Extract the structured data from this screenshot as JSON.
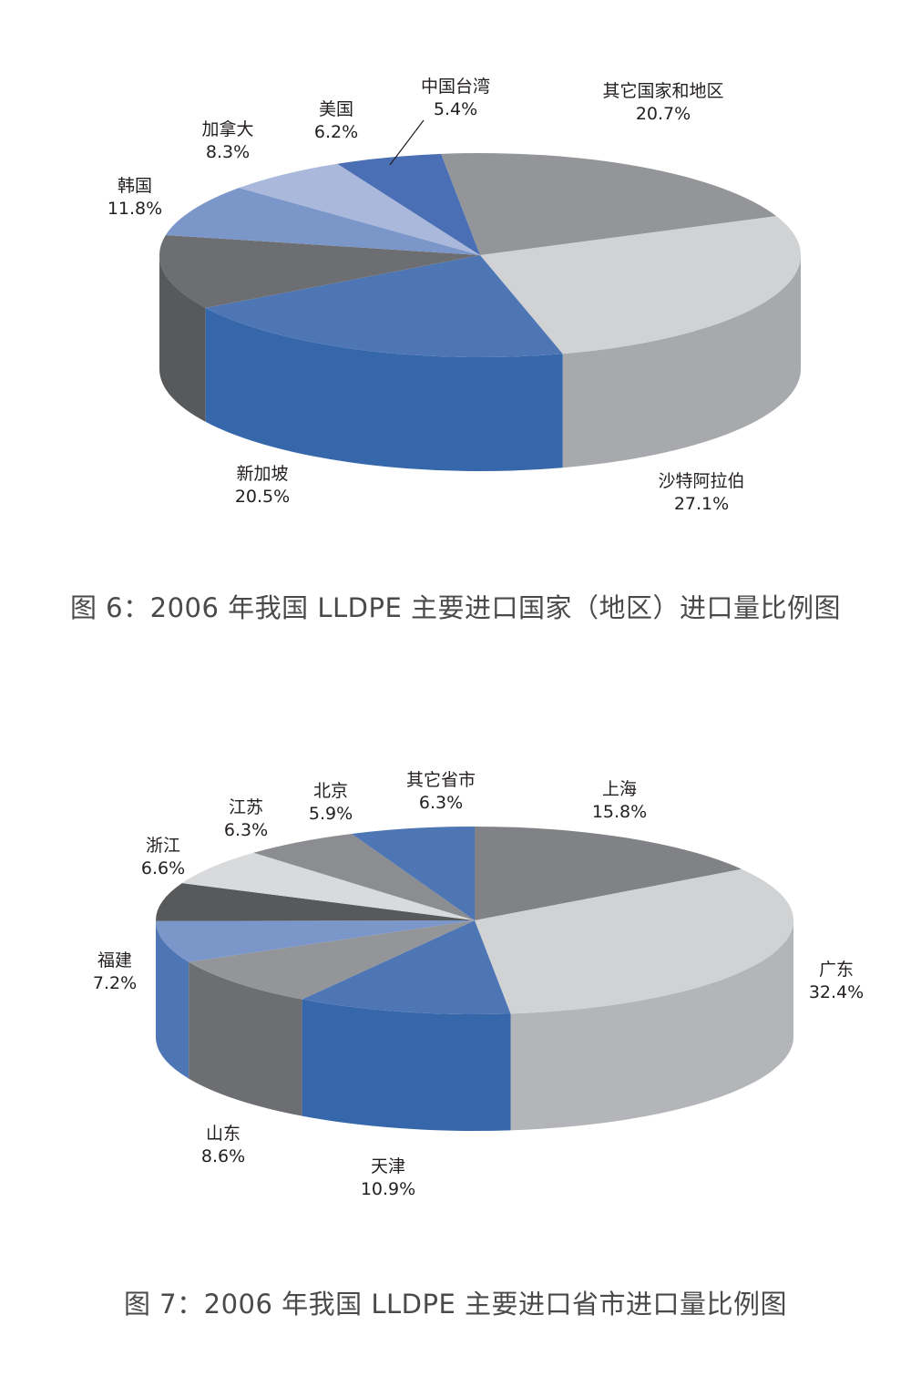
{
  "chart_data": [
    {
      "type": "pie",
      "style": "3d",
      "title": "图 6：2006 年我国 LLDPE 主要进口国家（地区）进口量比例图",
      "unit": "%",
      "categories": [
        "其它国家和地区",
        "沙特阿拉伯",
        "新加坡",
        "韩国",
        "加拿大",
        "美国",
        "中国台湾"
      ],
      "values": [
        20.7,
        27.1,
        20.5,
        11.8,
        8.3,
        6.2,
        5.4
      ],
      "labels": [
        {
          "name": "其它国家和地区",
          "value": "20.7%"
        },
        {
          "name": "沙特阿拉伯",
          "value": "27.1%"
        },
        {
          "name": "新加坡",
          "value": "20.5%"
        },
        {
          "name": "韩国",
          "value": "11.8%"
        },
        {
          "name": "加拿大",
          "value": "8.3%"
        },
        {
          "name": "美国",
          "value": "6.2%"
        },
        {
          "name": "中国台湾",
          "value": "5.4%"
        }
      ],
      "colors": [
        "#939598",
        "#d1d2d4",
        "#4f76b4",
        "#6d6e71",
        "#7b96c9",
        "#a9b8db",
        "#4a6fb5"
      ],
      "side_colors": [
        "#7a7b7e",
        "#a7a9ac",
        "#3667ab",
        "#58595b",
        "#5f7fb8",
        "#8fa2cc",
        "#3a5fa0"
      ],
      "legend": "none (direct labels)"
    },
    {
      "type": "pie",
      "style": "3d",
      "title": "图 7：2006 年我国 LLDPE 主要进口省市进口量比例图",
      "unit": "%",
      "categories": [
        "上海",
        "广东",
        "天津",
        "山东",
        "福建",
        "浙江",
        "江苏",
        "北京",
        "其它省市"
      ],
      "values": [
        15.8,
        32.4,
        10.9,
        8.6,
        7.2,
        6.6,
        6.3,
        5.9,
        6.3
      ],
      "labels": [
        {
          "name": "上海",
          "value": "15.8%"
        },
        {
          "name": "广东",
          "value": "32.4%"
        },
        {
          "name": "天津",
          "value": "10.9%"
        },
        {
          "name": "山东",
          "value": "8.6%"
        },
        {
          "name": "福建",
          "value": "7.2%"
        },
        {
          "name": "浙江",
          "value": "6.6%"
        },
        {
          "name": "江苏",
          "value": "6.3%"
        },
        {
          "name": "北京",
          "value": "5.9%"
        },
        {
          "name": "其它省市",
          "value": "6.3%"
        }
      ],
      "colors": [
        "#808285",
        "#d1d2d4",
        "#4f76b4",
        "#939598",
        "#7b96c9",
        "#58595b",
        "#d9dadc",
        "#8c8d90",
        "#4f76b4"
      ],
      "side_colors": [
        "#6d6e71",
        "#b4b5b8",
        "#3667ab",
        "#6d6e71",
        "#4f76b4",
        "#414042",
        "#bcbec0",
        "#77787b",
        "#3a64a8"
      ],
      "legend": "none (direct labels)"
    }
  ],
  "captions": {
    "fig6": "图 6：2006 年我国 LLDPE 主要进口国家（地区）进口量比例图",
    "fig7": "图 7：2006 年我国 LLDPE 主要进口省市进口量比例图"
  }
}
